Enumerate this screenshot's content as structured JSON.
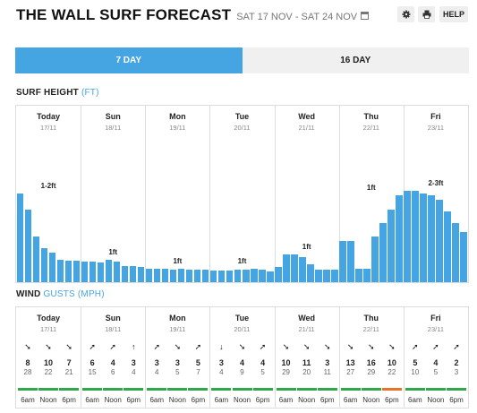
{
  "header": {
    "title": "THE WALL SURF FORECAST",
    "dates": "SAT 17 NOV - SAT 24 NOV",
    "settings_icon": "gear-icon",
    "print_icon": "printer-icon",
    "calendar_icon": "calendar-icon",
    "help_label": "HELP"
  },
  "tabs": [
    {
      "label": "7 DAY",
      "active": true
    },
    {
      "label": "16 DAY",
      "active": false
    }
  ],
  "surf": {
    "label": "SURF HEIGHT",
    "unit": "(FT)",
    "bar_color": "#45a5e2",
    "bar_max_ft": 3.2,
    "days": [
      {
        "name": "Today",
        "date": "17/11",
        "label": "1-2ft"
      },
      {
        "name": "Sun",
        "date": "18/11",
        "label": "1ft"
      },
      {
        "name": "Mon",
        "date": "19/11",
        "label": "1ft"
      },
      {
        "name": "Tue",
        "date": "20/11",
        "label": "1ft"
      },
      {
        "name": "Wed",
        "date": "21/11",
        "label": "1ft"
      },
      {
        "name": "Thu",
        "date": "22/11",
        "label": "1ft"
      },
      {
        "name": "Fri",
        "date": "23/11",
        "label": "2-3ft"
      }
    ],
    "heights": [
      1.95,
      1.6,
      1.0,
      0.75,
      0.65,
      0.5,
      0.48,
      0.47,
      0.46,
      0.45,
      0.44,
      0.5,
      0.45,
      0.35,
      0.35,
      0.33,
      0.3,
      0.3,
      0.3,
      0.28,
      0.3,
      0.28,
      0.28,
      0.27,
      0.25,
      0.25,
      0.25,
      0.27,
      0.28,
      0.3,
      0.27,
      0.24,
      0.33,
      0.6,
      0.6,
      0.55,
      0.4,
      0.28,
      0.28,
      0.28,
      0.9,
      0.9,
      0.3,
      0.3,
      1.0,
      1.3,
      1.6,
      1.9,
      2.0,
      2.0,
      1.95,
      1.9,
      1.8,
      1.55,
      1.3,
      1.1
    ]
  },
  "wind": {
    "label": "WIND",
    "unit": "GUSTS (MPH)",
    "days": [
      {
        "name": "Today",
        "date": "17/11"
      },
      {
        "name": "Sun",
        "date": "18/11"
      },
      {
        "name": "Mon",
        "date": "19/11"
      },
      {
        "name": "Tue",
        "date": "20/11"
      },
      {
        "name": "Wed",
        "date": "21/11"
      },
      {
        "name": "Thu",
        "date": "22/11"
      },
      {
        "name": "Fri",
        "date": "23/11"
      }
    ],
    "slots": [
      {
        "time": "6am",
        "arrow": "➘",
        "speed": "8",
        "gust": "28",
        "rating": "#2ea84a"
      },
      {
        "time": "Noon",
        "arrow": "➘",
        "speed": "10",
        "gust": "22",
        "rating": "#2ea84a"
      },
      {
        "time": "6pm",
        "arrow": "➘",
        "speed": "7",
        "gust": "21",
        "rating": "#2ea84a"
      },
      {
        "time": "6am",
        "arrow": "➚",
        "speed": "6",
        "gust": "15",
        "rating": "#2ea84a"
      },
      {
        "time": "Noon",
        "arrow": "➚",
        "speed": "4",
        "gust": "6",
        "rating": "#2ea84a"
      },
      {
        "time": "6pm",
        "arrow": "↑",
        "speed": "3",
        "gust": "4",
        "rating": "#2ea84a"
      },
      {
        "time": "6am",
        "arrow": "➚",
        "speed": "3",
        "gust": "4",
        "rating": "#2ea84a"
      },
      {
        "time": "Noon",
        "arrow": "➘",
        "speed": "3",
        "gust": "5",
        "rating": "#2ea84a"
      },
      {
        "time": "6pm",
        "arrow": "➚",
        "speed": "5",
        "gust": "7",
        "rating": "#2ea84a"
      },
      {
        "time": "6am",
        "arrow": "↓",
        "speed": "3",
        "gust": "4",
        "rating": "#2ea84a"
      },
      {
        "time": "Noon",
        "arrow": "➘",
        "speed": "4",
        "gust": "9",
        "rating": "#2ea84a"
      },
      {
        "time": "6pm",
        "arrow": "➚",
        "speed": "4",
        "gust": "5",
        "rating": "#2ea84a"
      },
      {
        "time": "6am",
        "arrow": "➘",
        "speed": "10",
        "gust": "29",
        "rating": "#2ea84a"
      },
      {
        "time": "Noon",
        "arrow": "➘",
        "speed": "11",
        "gust": "20",
        "rating": "#2ea84a"
      },
      {
        "time": "6pm",
        "arrow": "➘",
        "speed": "3",
        "gust": "11",
        "rating": "#2ea84a"
      },
      {
        "time": "6am",
        "arrow": "➘",
        "speed": "13",
        "gust": "27",
        "rating": "#2ea84a"
      },
      {
        "time": "Noon",
        "arrow": "➘",
        "speed": "16",
        "gust": "29",
        "rating": "#2ea84a"
      },
      {
        "time": "6pm",
        "arrow": "➘",
        "speed": "10",
        "gust": "22",
        "rating": "#e8742a"
      },
      {
        "time": "6am",
        "arrow": "➚",
        "speed": "5",
        "gust": "10",
        "rating": "#2ea84a"
      },
      {
        "time": "Noon",
        "arrow": "➚",
        "speed": "4",
        "gust": "5",
        "rating": "#2ea84a"
      },
      {
        "time": "6pm",
        "arrow": "➚",
        "speed": "2",
        "gust": "3",
        "rating": "#2ea84a"
      }
    ]
  }
}
